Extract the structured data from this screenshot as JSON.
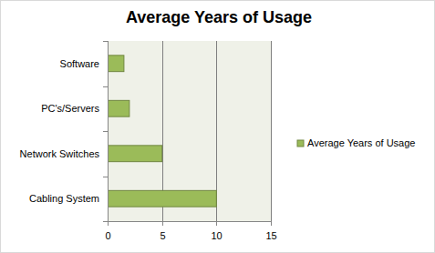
{
  "chart_data": {
    "type": "bar",
    "title": "Average Years of Usage",
    "orientation": "horizontal",
    "categories": [
      "Cabling System",
      "Network Switches",
      "PC's/Servers",
      "Software"
    ],
    "series": [
      {
        "name": "Average Years of Usage",
        "color": "#9bbb59",
        "values": [
          10,
          5,
          2,
          1.5
        ]
      }
    ],
    "xlim": [
      0,
      15
    ],
    "xticks": [
      0,
      5,
      10,
      15
    ],
    "grid": true,
    "legend": "right"
  }
}
